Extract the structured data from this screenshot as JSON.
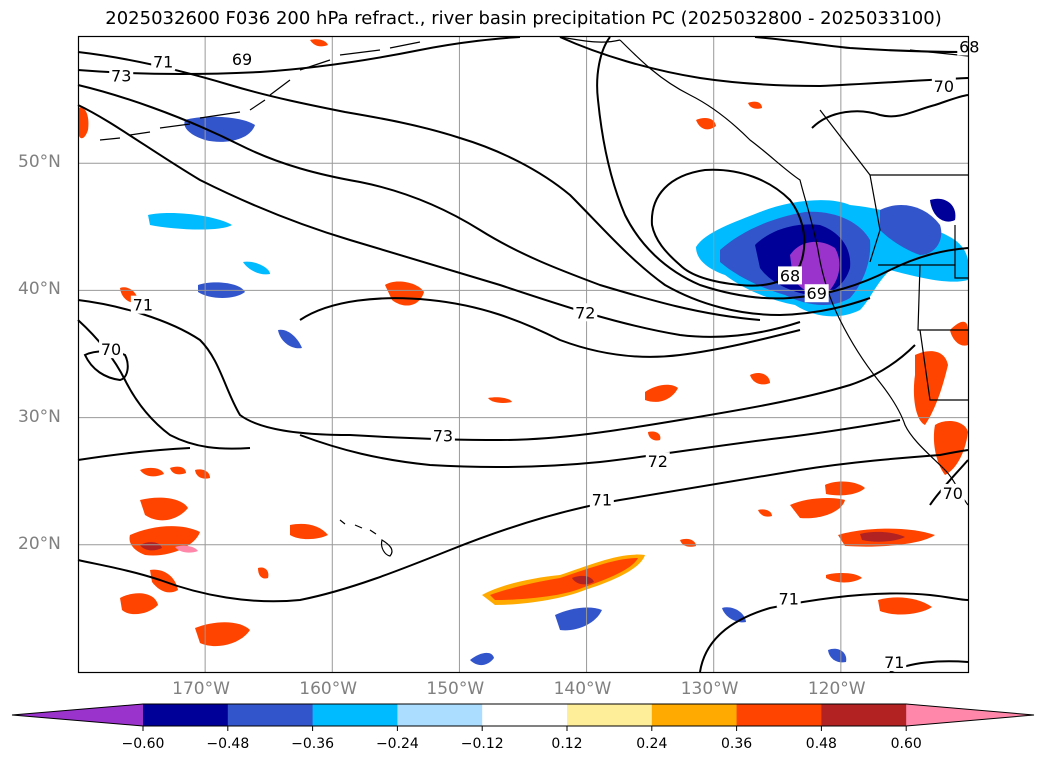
{
  "title": "2025032600 F036 200 hPa refract., river basin precipitation PC (2025032800 - 2025033100)",
  "map": {
    "lon_range": [
      -180,
      -110
    ],
    "lat_range": [
      10,
      60
    ],
    "lat_lines": [
      20,
      30,
      40,
      50
    ],
    "lon_lines": [
      -170,
      -160,
      -150,
      -140,
      -130,
      -120
    ],
    "lat_labels": [
      {
        "lat": 50,
        "text": "50°N"
      },
      {
        "lat": 40,
        "text": "40°N"
      },
      {
        "lat": 30,
        "text": "30°N"
      },
      {
        "lat": 20,
        "text": "20°N"
      }
    ],
    "lon_labels": [
      {
        "lon": -170,
        "text": "170°W"
      },
      {
        "lon": -160,
        "text": "160°W"
      },
      {
        "lon": -150,
        "text": "150°W"
      },
      {
        "lon": -140,
        "text": "140°W"
      },
      {
        "lon": -130,
        "text": "130°W"
      },
      {
        "lon": -120,
        "text": "120°W"
      }
    ],
    "contour_labels": [
      {
        "text": "68",
        "lon": -109.9,
        "lat": 59.1
      },
      {
        "text": "70",
        "lon": -111.9,
        "lat": 56.0
      },
      {
        "text": "69",
        "lon": -167.1,
        "lat": 58.1
      },
      {
        "text": "71",
        "lon": -173.3,
        "lat": 57.9
      },
      {
        "text": "73",
        "lon": -176.6,
        "lat": 56.8
      },
      {
        "text": "68",
        "lon": -124.0,
        "lat": 41.1
      },
      {
        "text": "69",
        "lon": -121.9,
        "lat": 39.7
      },
      {
        "text": "72",
        "lon": -140.1,
        "lat": 38.2
      },
      {
        "text": "71",
        "lon": -174.9,
        "lat": 38.8
      },
      {
        "text": "70",
        "lon": -177.4,
        "lat": 35.3
      },
      {
        "text": "73",
        "lon": -151.3,
        "lat": 28.5
      },
      {
        "text": "72",
        "lon": -134.4,
        "lat": 26.5
      },
      {
        "text": "71",
        "lon": -138.8,
        "lat": 23.5
      },
      {
        "text": "70",
        "lon": -111.2,
        "lat": 24.0
      },
      {
        "text": "71",
        "lon": -124.1,
        "lat": 15.7
      },
      {
        "text": "71",
        "lon": -115.8,
        "lat": 10.7
      }
    ]
  },
  "colorbar": {
    "colors": [
      "#9933cc",
      "#000099",
      "#3355cc",
      "#00bbff",
      "#aaddff",
      "#ffffff",
      "#ffee99",
      "#ffaa00",
      "#ff4400",
      "#b22222",
      "#ff88aa"
    ],
    "levels": [
      -0.6,
      -0.48,
      -0.36,
      -0.24,
      -0.12,
      0.12,
      0.24,
      0.36,
      0.48,
      0.6
    ],
    "tick_labels": [
      "−0.60",
      "−0.48",
      "−0.36",
      "−0.24",
      "−0.12",
      "0.12",
      "0.24",
      "0.36",
      "0.48",
      "0.60"
    ]
  }
}
